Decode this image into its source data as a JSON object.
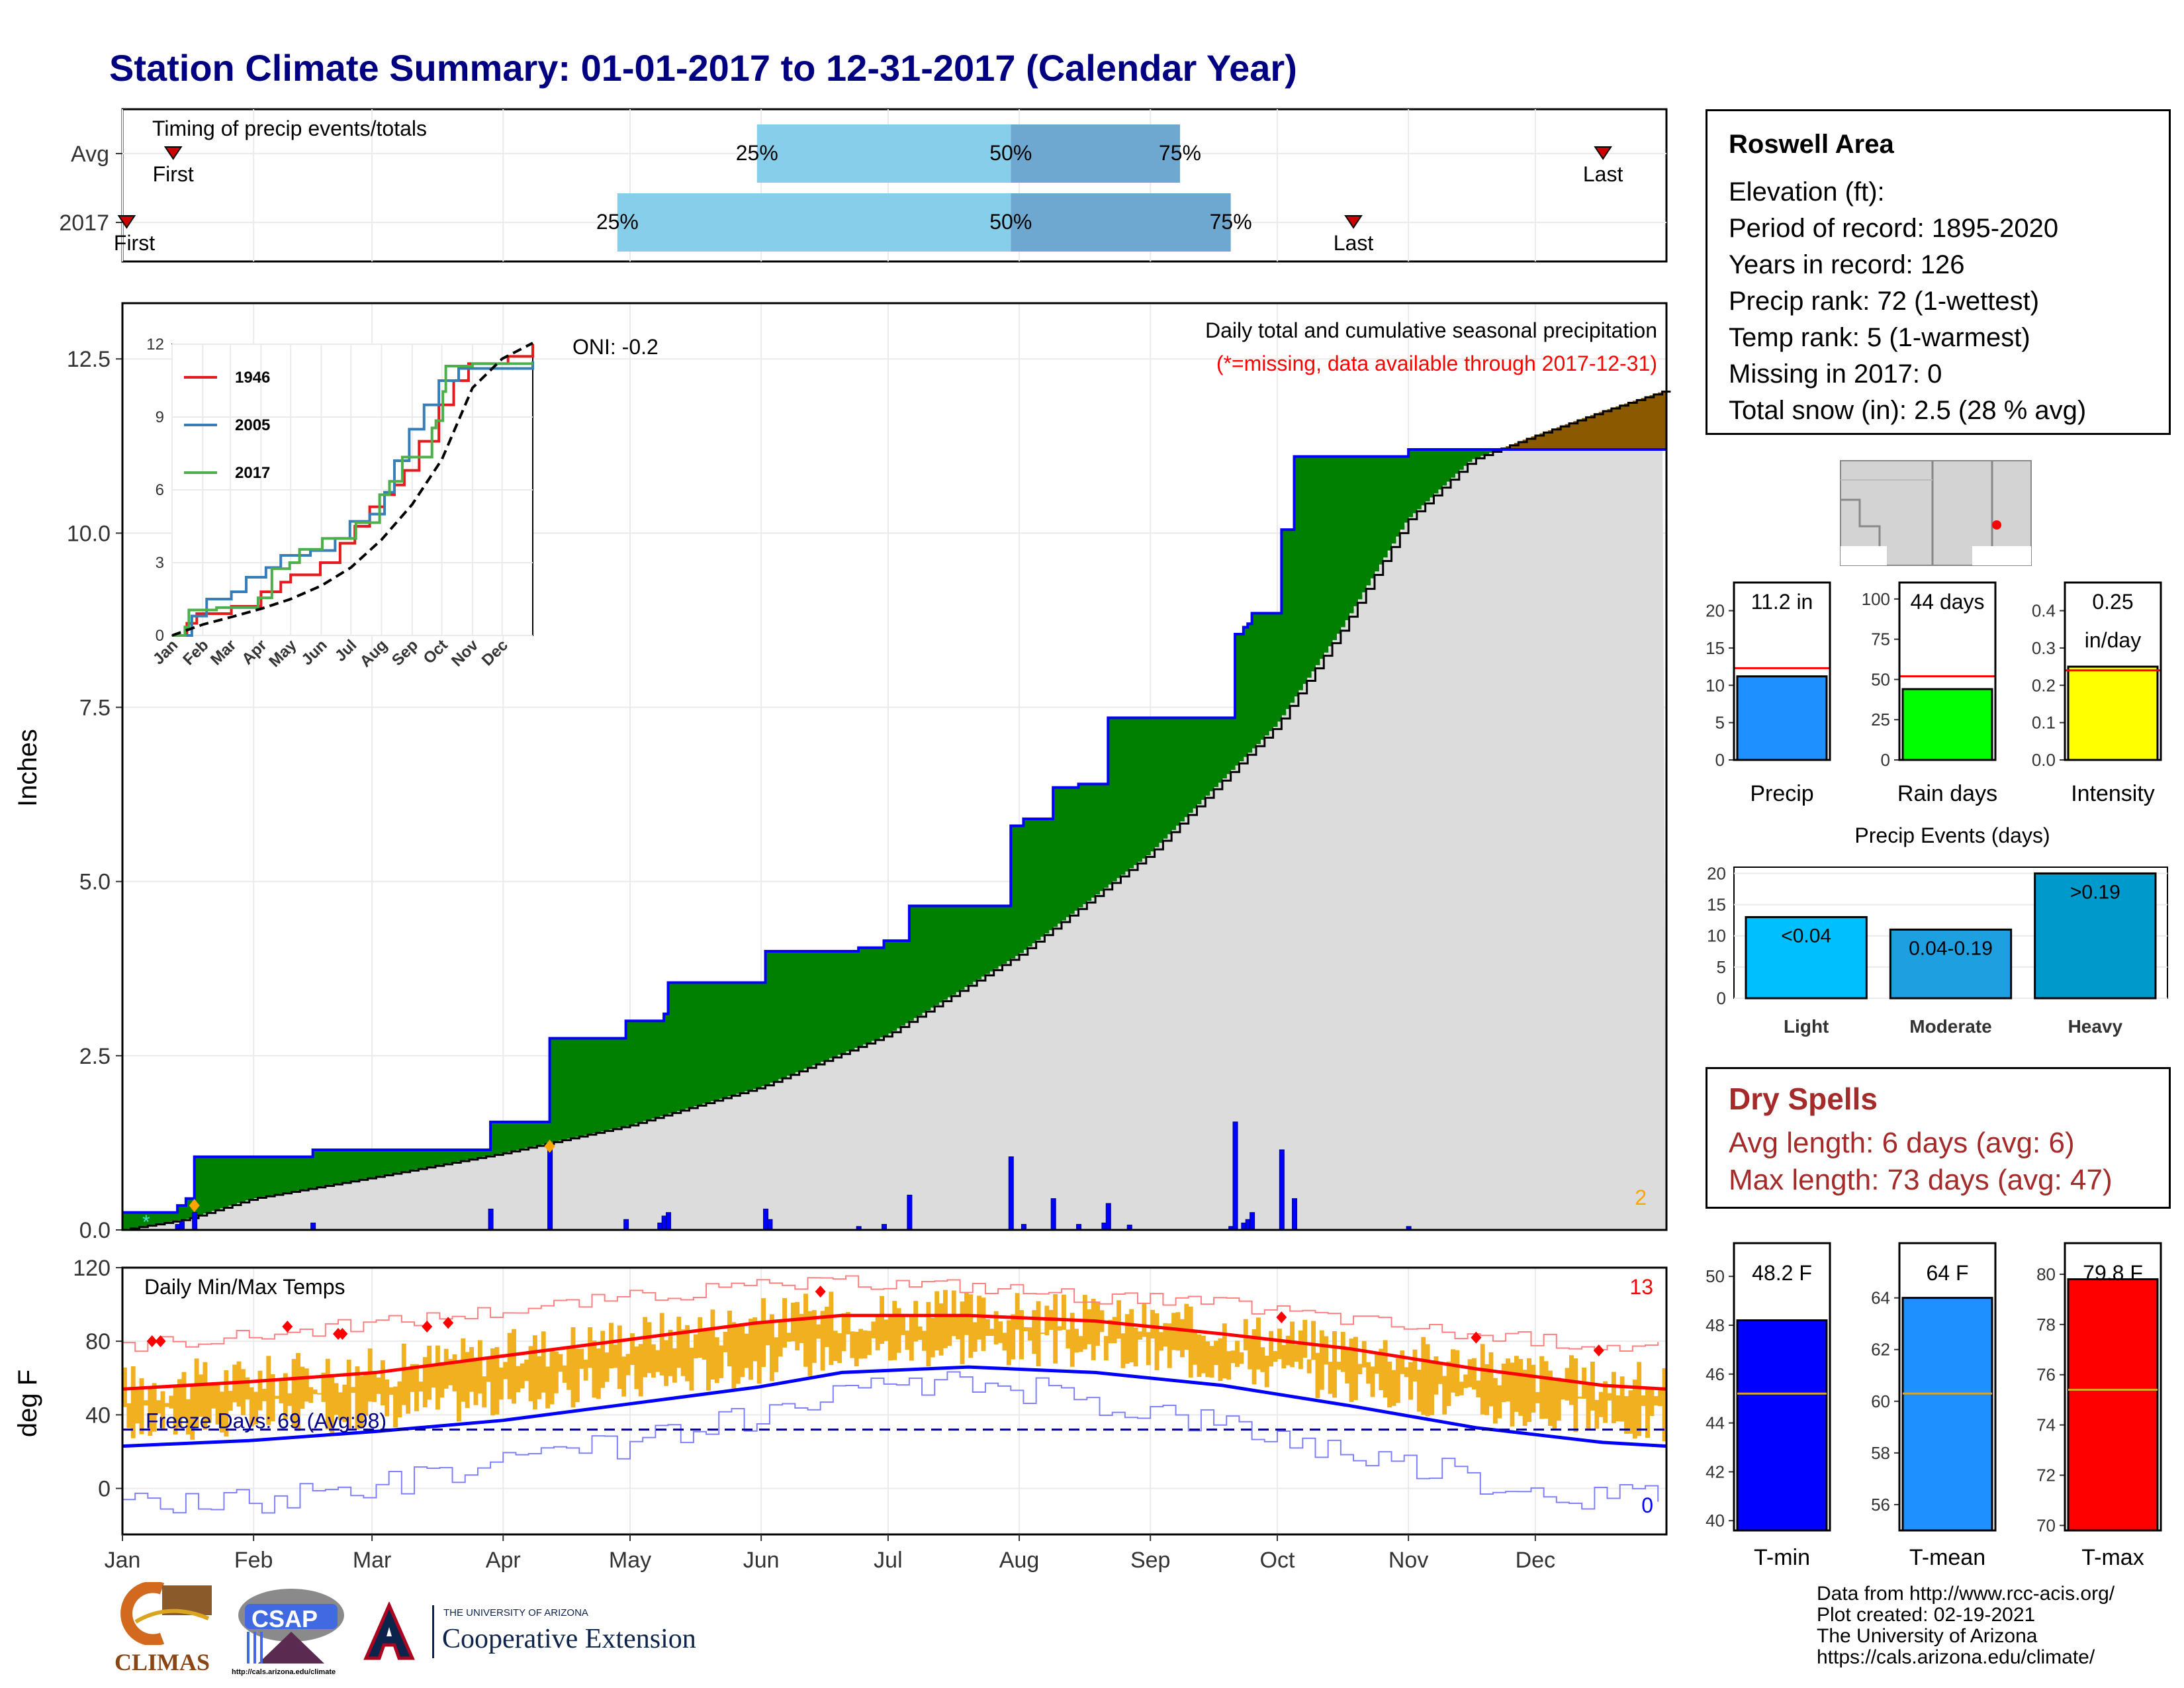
{
  "title": "Station Climate Summary: 01-01-2017 to 12-31-2017 (Calendar Year)",
  "colors": {
    "title": "#000080",
    "above_avg_fill": "#008000",
    "below_avg_fill": "#8b5a00",
    "cumulative_line": "#0000ff",
    "normal_area": "#dcdcdc",
    "daily_bars": "#0000ff",
    "timing_q1": "#87ceeb",
    "timing_q2": "#6ea8d0",
    "temp_bars": "#f0b020",
    "tmax_avg": "#ff0000",
    "tmin_avg": "#0000ff",
    "dry_spell_text": "#a52a2a"
  },
  "months": [
    "Jan",
    "Feb",
    "Mar",
    "Apr",
    "May",
    "Jun",
    "Jul",
    "Aug",
    "Sep",
    "Oct",
    "Nov",
    "Dec"
  ],
  "timing_panel": {
    "title": "Timing of precip events/totals",
    "rows": [
      "Avg",
      "2017"
    ],
    "avg": {
      "first_label": "First",
      "first_day": 12,
      "q25": 150,
      "q50": 210,
      "q75": 250,
      "last_label": "Last",
      "last_day": 350
    },
    "y2017": {
      "first_label": "First",
      "first_day": 1,
      "q25": 117,
      "q50": 210,
      "q75": 262,
      "last_label": "Last",
      "last_day": 291
    },
    "pct_labels": [
      "25%",
      "50%",
      "75%"
    ]
  },
  "precip_panel": {
    "ylabel": "Inches",
    "title": "Daily total and cumulative seasonal precipitation",
    "subtitle": "(*=missing, data available through 2017-12-31)",
    "ylim": [
      0,
      13.3
    ],
    "yticks": [
      "0.0",
      "2.5",
      "5.0",
      "7.5",
      "10.0",
      "12.5"
    ],
    "corner_count": "2",
    "normal_cumulative": [
      [
        0,
        0
      ],
      [
        31,
        0.3
      ],
      [
        59,
        0.6
      ],
      [
        90,
        1.0
      ],
      [
        120,
        1.45
      ],
      [
        151,
        1.95
      ],
      [
        181,
        2.85
      ],
      [
        212,
        4.05
      ],
      [
        243,
        5.5
      ],
      [
        273,
        7.3
      ],
      [
        304,
        8.7
      ],
      [
        334,
        9.9
      ],
      [
        365,
        10.4
      ],
      [
        396,
        11.3
      ],
      [
        426,
        11.8
      ],
      [
        457,
        12.55
      ],
      [
        487,
        13.0
      ],
      [
        518,
        13.3
      ]
    ],
    "actual_cumulative": [
      [
        0,
        0.25
      ],
      [
        12,
        0.25
      ],
      [
        13,
        0.35
      ],
      [
        14,
        0.35
      ],
      [
        15,
        0.45
      ],
      [
        16,
        0.45
      ],
      [
        17,
        1.05
      ],
      [
        44,
        1.05
      ],
      [
        45,
        1.15
      ],
      [
        86,
        1.15
      ],
      [
        87,
        1.55
      ],
      [
        100,
        1.55
      ],
      [
        101,
        2.75
      ],
      [
        118,
        2.75
      ],
      [
        119,
        3.0
      ],
      [
        127,
        3.0
      ],
      [
        128,
        3.1
      ],
      [
        129,
        3.55
      ],
      [
        151,
        3.55
      ],
      [
        152,
        4.0
      ],
      [
        173,
        4.0
      ],
      [
        174,
        4.05
      ],
      [
        179,
        4.05
      ],
      [
        180,
        4.15
      ],
      [
        185,
        4.15
      ],
      [
        186,
        4.65
      ],
      [
        209,
        4.65
      ],
      [
        210,
        5.8
      ],
      [
        212,
        5.8
      ],
      [
        213,
        5.9
      ],
      [
        219,
        5.9
      ],
      [
        220,
        6.35
      ],
      [
        225,
        6.35
      ],
      [
        226,
        6.4
      ],
      [
        232,
        6.4
      ],
      [
        233,
        7.35
      ],
      [
        262,
        7.35
      ],
      [
        263,
        8.55
      ],
      [
        264,
        8.55
      ],
      [
        265,
        8.65
      ],
      [
        266,
        8.7
      ],
      [
        267,
        8.85
      ],
      [
        273,
        8.85
      ],
      [
        274,
        10.05
      ],
      [
        276,
        10.05
      ],
      [
        277,
        11.1
      ],
      [
        303,
        11.1
      ],
      [
        304,
        11.2
      ],
      [
        340,
        11.2
      ],
      [
        365,
        11.2
      ]
    ],
    "normal_to_day": [
      [
        0,
        0
      ],
      [
        15,
        0.15
      ],
      [
        31,
        0.45
      ],
      [
        59,
        0.75
      ],
      [
        90,
        1.1
      ],
      [
        120,
        1.5
      ],
      [
        151,
        2.05
      ],
      [
        181,
        2.8
      ],
      [
        212,
        3.95
      ],
      [
        243,
        5.4
      ],
      [
        273,
        7.25
      ],
      [
        288,
        8.6
      ],
      [
        304,
        10.2
      ],
      [
        319,
        11.05
      ],
      [
        334,
        11.4
      ],
      [
        350,
        11.75
      ],
      [
        365,
        12.05
      ]
    ],
    "daily_events": [
      [
        13,
        0.08
      ],
      [
        14,
        0.12
      ],
      [
        17,
        0.25
      ],
      [
        45,
        0.1
      ],
      [
        87,
        0.3
      ],
      [
        101,
        1.2
      ],
      [
        119,
        0.15
      ],
      [
        127,
        0.1
      ],
      [
        128,
        0.2
      ],
      [
        129,
        0.25
      ],
      [
        152,
        0.3
      ],
      [
        153,
        0.15
      ],
      [
        174,
        0.05
      ],
      [
        180,
        0.08
      ],
      [
        186,
        0.5
      ],
      [
        210,
        1.05
      ],
      [
        213,
        0.08
      ],
      [
        220,
        0.45
      ],
      [
        226,
        0.08
      ],
      [
        232,
        0.1
      ],
      [
        233,
        0.38
      ],
      [
        238,
        0.07
      ],
      [
        262,
        0.05
      ],
      [
        263,
        1.55
      ],
      [
        265,
        0.1
      ],
      [
        266,
        0.15
      ],
      [
        267,
        0.25
      ],
      [
        274,
        1.15
      ],
      [
        277,
        0.45
      ],
      [
        304,
        0.05
      ]
    ],
    "diamonds": [
      [
        17,
        0.35
      ],
      [
        101,
        1.2
      ]
    ],
    "oni_label": "ONI: -0.2",
    "inset": {
      "ylim": [
        0,
        12
      ],
      "yticks": [
        "0",
        "3",
        "6",
        "9",
        "12"
      ],
      "xticks": [
        "Jan",
        "Feb",
        "Mar",
        "Apr",
        "May",
        "Jun",
        "Jul",
        "Aug",
        "Sep",
        "Oct",
        "Nov",
        "Dec"
      ],
      "legend": [
        "1946",
        "2005",
        "2017"
      ],
      "series": [
        {
          "name": "1946",
          "color": "#e41a1c",
          "values": [
            [
              0,
              0
            ],
            [
              15,
              0.5
            ],
            [
              25,
              0.9
            ],
            [
              60,
              1.2
            ],
            [
              90,
              1.8
            ],
            [
              110,
              2.2
            ],
            [
              120,
              2.5
            ],
            [
              150,
              3.0
            ],
            [
              170,
              3.8
            ],
            [
              185,
              4.5
            ],
            [
              200,
              5.3
            ],
            [
              215,
              5.8
            ],
            [
              225,
              6.2
            ],
            [
              235,
              6.8
            ],
            [
              250,
              8.0
            ],
            [
              270,
              9.5
            ],
            [
              285,
              10.5
            ],
            [
              300,
              11.2
            ],
            [
              340,
              11.5
            ],
            [
              365,
              12.0
            ]
          ]
        },
        {
          "name": "2005",
          "color": "#377eb8",
          "values": [
            [
              0,
              0
            ],
            [
              20,
              0.8
            ],
            [
              35,
              1.5
            ],
            [
              60,
              1.8
            ],
            [
              75,
              2.4
            ],
            [
              95,
              2.8
            ],
            [
              110,
              3.3
            ],
            [
              140,
              3.5
            ],
            [
              165,
              4.0
            ],
            [
              180,
              4.7
            ],
            [
              200,
              5.0
            ],
            [
              215,
              5.9
            ],
            [
              225,
              7.2
            ],
            [
              240,
              8.5
            ],
            [
              255,
              9.5
            ],
            [
              270,
              10.5
            ],
            [
              290,
              11.0
            ],
            [
              365,
              11.3
            ]
          ]
        },
        {
          "name": "2017",
          "color": "#4daf4a",
          "values": [
            [
              0,
              0
            ],
            [
              13,
              0.35
            ],
            [
              17,
              1.05
            ],
            [
              45,
              1.15
            ],
            [
              87,
              1.55
            ],
            [
              101,
              2.75
            ],
            [
              119,
              3.0
            ],
            [
              129,
              3.55
            ],
            [
              152,
              4.0
            ],
            [
              186,
              4.65
            ],
            [
              210,
              5.8
            ],
            [
              220,
              6.35
            ],
            [
              233,
              7.35
            ],
            [
              263,
              8.55
            ],
            [
              267,
              8.85
            ],
            [
              274,
              10.05
            ],
            [
              277,
              11.1
            ],
            [
              304,
              11.2
            ],
            [
              365,
              11.2
            ]
          ]
        },
        {
          "name": "avg",
          "color": "#000000",
          "values": [
            [
              0,
              0
            ],
            [
              31,
              0.45
            ],
            [
              59,
              0.75
            ],
            [
              90,
              1.1
            ],
            [
              120,
              1.5
            ],
            [
              151,
              2.05
            ],
            [
              181,
              2.8
            ],
            [
              212,
              3.95
            ],
            [
              243,
              5.4
            ],
            [
              273,
              7.25
            ],
            [
              304,
              10.2
            ],
            [
              334,
              11.4
            ],
            [
              365,
              12.05
            ]
          ]
        }
      ]
    }
  },
  "temp_panel": {
    "ylabel": "deg F",
    "title": "Daily Min/Max Temps",
    "ylim": [
      -25,
      120
    ],
    "yticks": [
      "0",
      "40",
      "80",
      "120"
    ],
    "freeze_label": "Freeze Days: 69 (Avg:98)",
    "freeze_line": 32,
    "hot_count": "13",
    "cold_count": "0",
    "avg_max": [
      [
        0,
        54
      ],
      [
        30,
        58
      ],
      [
        60,
        63
      ],
      [
        90,
        72
      ],
      [
        120,
        81
      ],
      [
        150,
        90
      ],
      [
        170,
        94
      ],
      [
        200,
        94
      ],
      [
        230,
        91
      ],
      [
        260,
        84
      ],
      [
        290,
        76
      ],
      [
        320,
        65
      ],
      [
        350,
        56
      ],
      [
        365,
        54
      ]
    ],
    "avg_min": [
      [
        0,
        23
      ],
      [
        30,
        26
      ],
      [
        60,
        31
      ],
      [
        90,
        37
      ],
      [
        120,
        46
      ],
      [
        150,
        55
      ],
      [
        170,
        63
      ],
      [
        200,
        66
      ],
      [
        230,
        63
      ],
      [
        260,
        56
      ],
      [
        290,
        45
      ],
      [
        320,
        33
      ],
      [
        350,
        25
      ],
      [
        365,
        23
      ]
    ],
    "record_max": [
      [
        0,
        78
      ],
      [
        30,
        83
      ],
      [
        60,
        90
      ],
      [
        90,
        97
      ],
      [
        120,
        104
      ],
      [
        150,
        110
      ],
      [
        175,
        112
      ],
      [
        200,
        110
      ],
      [
        230,
        104
      ],
      [
        260,
        100
      ],
      [
        290,
        92
      ],
      [
        320,
        83
      ],
      [
        350,
        78
      ],
      [
        365,
        76
      ]
    ],
    "record_min": [
      [
        0,
        -8
      ],
      [
        30,
        -8
      ],
      [
        60,
        3
      ],
      [
        90,
        12
      ],
      [
        120,
        25
      ],
      [
        150,
        38
      ],
      [
        175,
        52
      ],
      [
        200,
        58
      ],
      [
        230,
        48
      ],
      [
        260,
        35
      ],
      [
        290,
        20
      ],
      [
        320,
        5
      ],
      [
        350,
        -5
      ],
      [
        365,
        -2
      ]
    ],
    "hot_markers": [
      [
        7,
        80
      ],
      [
        9,
        80
      ],
      [
        39,
        88
      ],
      [
        51,
        84
      ],
      [
        52,
        84
      ],
      [
        72,
        88
      ],
      [
        77,
        90
      ],
      [
        165,
        107
      ],
      [
        274,
        93
      ],
      [
        320,
        82
      ],
      [
        349,
        75
      ]
    ]
  },
  "info_box": {
    "station": "Roswell Area",
    "lines": [
      "Elevation (ft):",
      "Period of record: 1895-2020",
      "Years in record: 126",
      "Precip rank: 72 (1-wettest)",
      "Temp rank: 5 (1-warmest)",
      "Missing in 2017: 0",
      "Total snow (in): 2.5 (28 % avg)"
    ]
  },
  "summary_bars": [
    {
      "label": "Precip",
      "value_label": "11.2 in",
      "value": 11.2,
      "avg": 12.3,
      "ylim": [
        0,
        22
      ],
      "yticks": [
        "0",
        "5",
        "10",
        "15",
        "20"
      ],
      "color": "#1e90ff"
    },
    {
      "label": "Rain days",
      "value_label": "44 days",
      "value": 44,
      "avg": 52,
      "ylim": [
        0,
        102
      ],
      "yticks": [
        "0",
        "25",
        "50",
        "75",
        "100"
      ],
      "color": "#00ff00"
    },
    {
      "label": "Intensity",
      "value_label": "0.25\nin/day",
      "value": 0.25,
      "avg": 0.24,
      "ylim": [
        0,
        0.44
      ],
      "yticks": [
        "0.0",
        "0.1",
        "0.2",
        "0.3",
        "0.4"
      ],
      "color": "#ffff00"
    }
  ],
  "precip_events": {
    "title": "Precip Events (days)",
    "ylim": [
      0,
      21
    ],
    "yticks": [
      "0",
      "5",
      "10",
      "15",
      "20"
    ],
    "bars": [
      {
        "label": "Light",
        "value_label": "<0.04",
        "value": 13,
        "color": "#00bfff"
      },
      {
        "label": "Moderate",
        "value_label": "0.04-0.19",
        "value": 11,
        "color": "#1ea0e0"
      },
      {
        "label": "Heavy",
        "value_label": ">0.19",
        "value": 20,
        "color": "#0099cc"
      }
    ]
  },
  "dry_spells": {
    "title": "Dry Spells",
    "avg_line": "Avg length: 6 days (avg: 6)",
    "max_line": "Max length: 73 days (avg: 47)"
  },
  "temp_bars": [
    {
      "label": "T-min",
      "value_label": "48.2 F",
      "value": 48.2,
      "avg": 45.2,
      "ylim": [
        39.6,
        50.6
      ],
      "yticks": [
        "40",
        "42",
        "44",
        "46",
        "48",
        "50"
      ],
      "color": "#0000ff"
    },
    {
      "label": "T-mean",
      "value_label": "64 F",
      "value": 64.0,
      "avg": 60.3,
      "ylim": [
        55.0,
        65.4
      ],
      "yticks": [
        "56",
        "58",
        "60",
        "62",
        "64"
      ],
      "color": "#1e90ff"
    },
    {
      "label": "T-max",
      "value_label": "79.8 F",
      "value": 79.8,
      "avg": 75.4,
      "ylim": [
        69.8,
        80.5
      ],
      "yticks": [
        "70",
        "72",
        "74",
        "76",
        "78",
        "80"
      ],
      "color": "#ff0000"
    }
  ],
  "credits": [
    "Data from http://www.rcc-acis.org/",
    "Plot created: 02-19-2021",
    "The University of Arizona",
    "https://cals.arizona.edu/climate/"
  ],
  "logos": {
    "climas": "CLIMAS",
    "csap": "CSAP",
    "csap_url": "http://cals.arizona.edu/climate",
    "ua_small": "THE UNIVERSITY OF ARIZONA",
    "ua_big": "Cooperative Extension"
  }
}
